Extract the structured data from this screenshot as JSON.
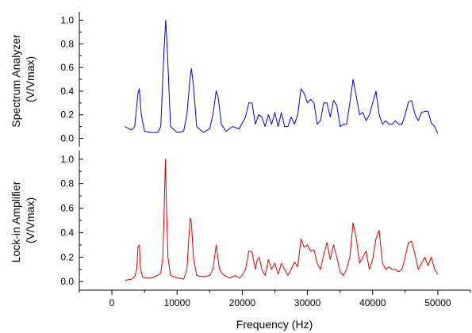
{
  "chart_data": {
    "type": "line",
    "xlabel": "Frequency (Hz)",
    "xlim": [
      -5000,
      55000
    ],
    "x_ticks": [
      0,
      10000,
      20000,
      30000,
      40000,
      50000
    ],
    "x_tick_labels": [
      "0",
      "10000",
      "20000",
      "30000",
      "40000",
      "50000"
    ],
    "panels": [
      {
        "ylabel_lines": [
          "Spectrum Analyzer",
          "(V/Vmax)"
        ],
        "ylim": [
          -0.07,
          1.07
        ],
        "y_ticks": [
          0.0,
          0.2,
          0.4,
          0.6,
          0.8,
          1.0
        ],
        "y_tick_labels": [
          "0.0",
          "0.2",
          "0.4",
          "0.6",
          "0.8",
          "1.0"
        ],
        "color": "#0000cc",
        "x": [
          2000,
          3000,
          3500,
          4000,
          4200,
          4500,
          5000,
          6000,
          7000,
          7500,
          8000,
          8250,
          8500,
          9000,
          10000,
          11000,
          11500,
          12000,
          12200,
          12500,
          13000,
          14000,
          15000,
          15500,
          16000,
          16300,
          16800,
          17500,
          18500,
          19500,
          20500,
          21000,
          21500,
          22000,
          22500,
          23000,
          23500,
          24000,
          24500,
          25000,
          25500,
          26000,
          26500,
          27000,
          27500,
          28000,
          28500,
          29000,
          29500,
          30000,
          30500,
          31000,
          31500,
          32000,
          32500,
          33000,
          33500,
          34000,
          34500,
          35000,
          35500,
          36000,
          36500,
          37000,
          37500,
          38000,
          38500,
          39000,
          39500,
          40000,
          40500,
          41000,
          41500,
          42000,
          42500,
          43000,
          43500,
          44000,
          44500,
          45000,
          45500,
          46000,
          46500,
          47000,
          47500,
          48000,
          48500,
          49000,
          49500,
          50000
        ],
        "y": [
          0.1,
          0.07,
          0.1,
          0.38,
          0.42,
          0.2,
          0.06,
          0.05,
          0.05,
          0.1,
          0.75,
          1.0,
          0.75,
          0.1,
          0.05,
          0.06,
          0.2,
          0.52,
          0.59,
          0.45,
          0.1,
          0.05,
          0.08,
          0.2,
          0.4,
          0.35,
          0.12,
          0.06,
          0.1,
          0.08,
          0.18,
          0.3,
          0.3,
          0.12,
          0.2,
          0.18,
          0.1,
          0.2,
          0.12,
          0.22,
          0.1,
          0.22,
          0.1,
          0.1,
          0.18,
          0.12,
          0.2,
          0.42,
          0.38,
          0.3,
          0.33,
          0.3,
          0.12,
          0.15,
          0.3,
          0.3,
          0.18,
          0.32,
          0.28,
          0.1,
          0.12,
          0.12,
          0.3,
          0.5,
          0.35,
          0.2,
          0.22,
          0.15,
          0.2,
          0.3,
          0.4,
          0.2,
          0.12,
          0.15,
          0.12,
          0.12,
          0.15,
          0.12,
          0.12,
          0.2,
          0.31,
          0.32,
          0.2,
          0.15,
          0.22,
          0.23,
          0.23,
          0.13,
          0.1,
          0.04
        ]
      },
      {
        "ylabel_lines": [
          "Lock-in Amplifier",
          "(V/Vmax)"
        ],
        "ylim": [
          -0.07,
          1.07
        ],
        "y_ticks": [
          0.0,
          0.2,
          0.4,
          0.6,
          0.8,
          1.0
        ],
        "y_tick_labels": [
          "0.0",
          "0.2",
          "0.4",
          "0.6",
          "0.8",
          "1.0"
        ],
        "color": "#dd0000",
        "x": [
          2000,
          3000,
          3500,
          3800,
          4000,
          4200,
          4400,
          4700,
          5000,
          6000,
          7000,
          7500,
          7800,
          8000,
          8200,
          8400,
          8600,
          9000,
          10000,
          11000,
          11500,
          11800,
          12000,
          12200,
          12500,
          13000,
          14000,
          15000,
          15500,
          15800,
          16000,
          16200,
          16500,
          17000,
          18000,
          19000,
          19500,
          20000,
          20500,
          21000,
          21500,
          22000,
          22300,
          22600,
          23000,
          23500,
          24000,
          24500,
          25000,
          25500,
          26000,
          26500,
          27000,
          27500,
          28000,
          28500,
          29000,
          29500,
          30000,
          30500,
          31000,
          31500,
          32000,
          32500,
          33000,
          33500,
          34000,
          34500,
          35000,
          35500,
          36000,
          36500,
          37000,
          37500,
          38000,
          38500,
          39000,
          39500,
          40000,
          40500,
          41000,
          41500,
          42000,
          42500,
          43000,
          43500,
          44000,
          44500,
          45000,
          45500,
          46000,
          46500,
          47000,
          47500,
          48000,
          48500,
          49000,
          49500,
          50000
        ],
        "y": [
          0.01,
          0.02,
          0.04,
          0.1,
          0.28,
          0.3,
          0.1,
          0.04,
          0.03,
          0.03,
          0.05,
          0.07,
          0.2,
          0.55,
          1.0,
          0.55,
          0.2,
          0.05,
          0.03,
          0.02,
          0.1,
          0.35,
          0.52,
          0.48,
          0.2,
          0.05,
          0.04,
          0.05,
          0.1,
          0.22,
          0.3,
          0.22,
          0.1,
          0.06,
          0.03,
          0.05,
          0.03,
          0.05,
          0.1,
          0.25,
          0.24,
          0.1,
          0.18,
          0.2,
          0.1,
          0.05,
          0.18,
          0.1,
          0.15,
          0.06,
          0.15,
          0.1,
          0.05,
          0.1,
          0.16,
          0.12,
          0.35,
          0.28,
          0.3,
          0.25,
          0.26,
          0.15,
          0.1,
          0.22,
          0.32,
          0.18,
          0.3,
          0.2,
          0.08,
          0.05,
          0.1,
          0.2,
          0.48,
          0.35,
          0.15,
          0.2,
          0.25,
          0.1,
          0.18,
          0.35,
          0.42,
          0.15,
          0.1,
          0.12,
          0.1,
          0.1,
          0.08,
          0.1,
          0.2,
          0.32,
          0.33,
          0.22,
          0.1,
          0.15,
          0.2,
          0.13,
          0.2,
          0.1,
          0.06
        ]
      }
    ]
  }
}
